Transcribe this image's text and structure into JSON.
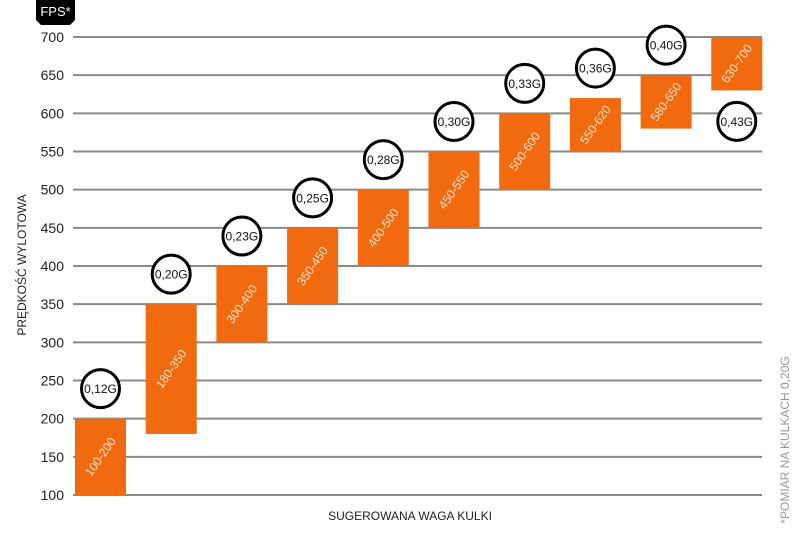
{
  "chart_data": {
    "type": "bar",
    "subtype": "floating-range",
    "badge": "FPS*",
    "ylabel": "PRĘDKOŚĆ WYLOTOWA",
    "xlabel": "SUGEROWANA WAGA KULKI",
    "footnote": "*POMIAR NA KULKACH 0,20G",
    "ylim": [
      100,
      700
    ],
    "yticks": [
      "100",
      "150",
      "200",
      "250",
      "300",
      "350",
      "400",
      "450",
      "500",
      "550",
      "600",
      "650",
      "700"
    ],
    "grid": true,
    "bar_color": "#f26a10",
    "series": [
      {
        "range_label": "100-200",
        "low": 100,
        "high": 200,
        "weight": "0,12G"
      },
      {
        "range_label": "180-350",
        "low": 180,
        "high": 350,
        "weight": "0,20G"
      },
      {
        "range_label": "300-400",
        "low": 300,
        "high": 400,
        "weight": "0,23G"
      },
      {
        "range_label": "350-450",
        "low": 350,
        "high": 450,
        "weight": "0,25G"
      },
      {
        "range_label": "400-500",
        "low": 400,
        "high": 500,
        "weight": "0,28G"
      },
      {
        "range_label": "450-550",
        "low": 450,
        "high": 550,
        "weight": "0,30G"
      },
      {
        "range_label": "500-600",
        "low": 500,
        "high": 600,
        "weight": "0,33G"
      },
      {
        "range_label": "550-620",
        "low": 550,
        "high": 620,
        "weight": "0,36G"
      },
      {
        "range_label": "580-650",
        "low": 580,
        "high": 650,
        "weight": "0,40G"
      },
      {
        "range_label": "630-700",
        "low": 630,
        "high": 700,
        "weight": "0,43G"
      }
    ]
  }
}
